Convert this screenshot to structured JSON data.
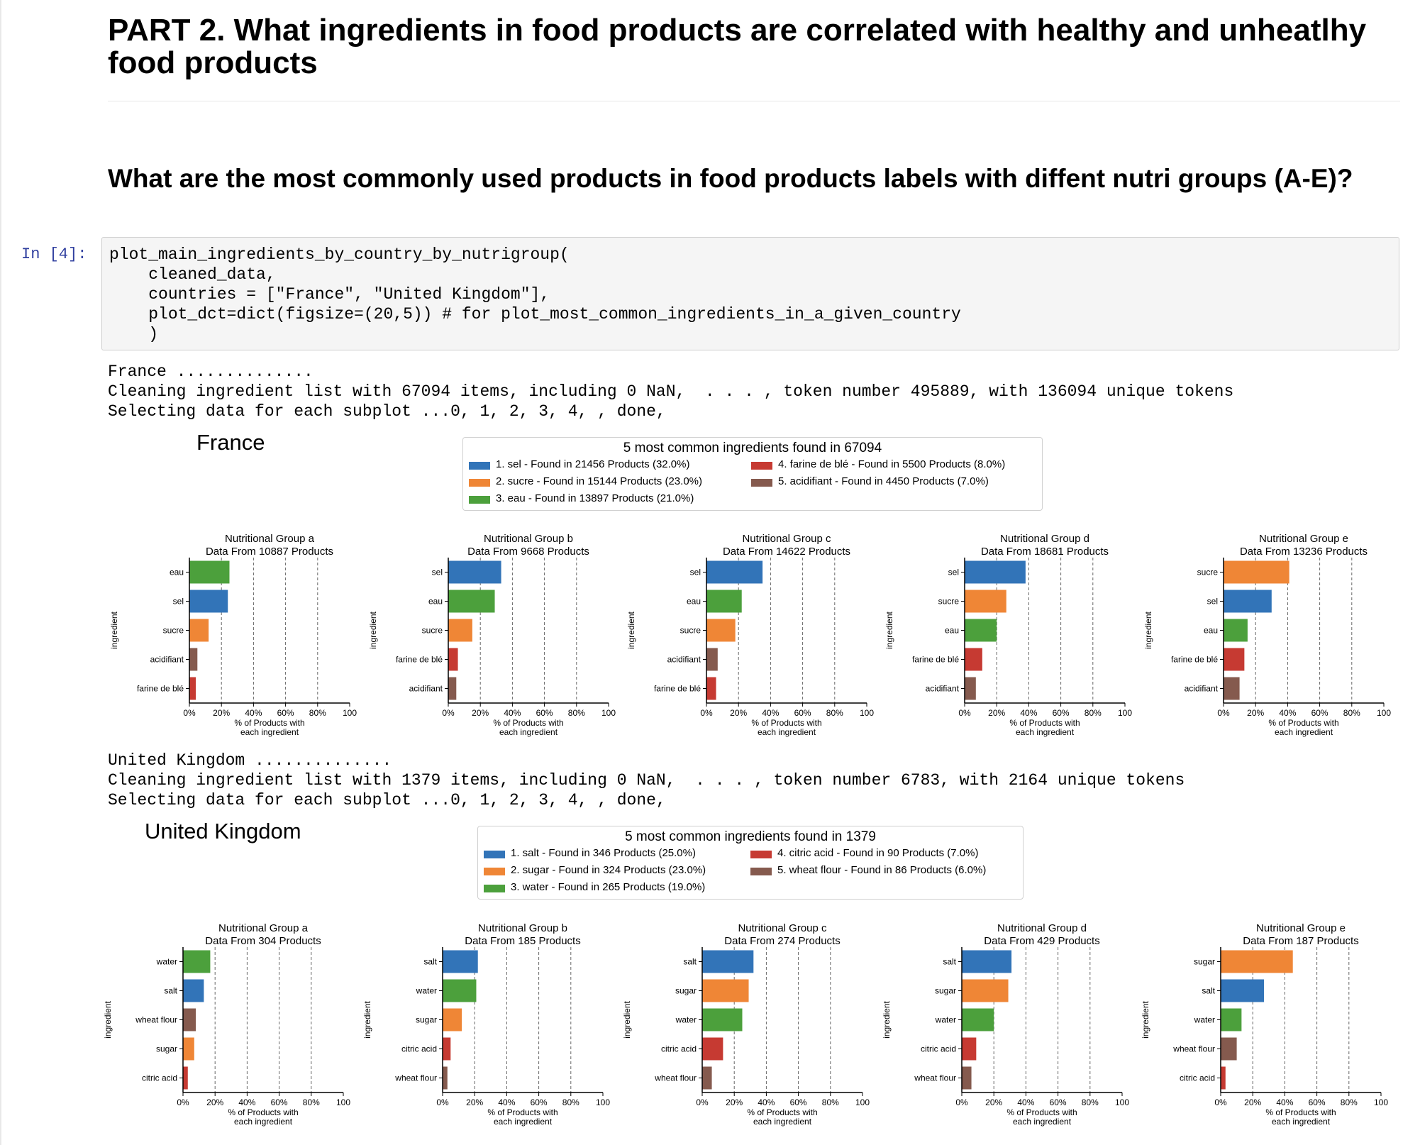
{
  "heading1": "PART 2. What ingredients in food products are correlated with healthy and unheatlhy food products",
  "heading2": "What are the most commonly used products in food products labels with diffent nutri groups (A-E)?",
  "prompt": "In [4]:",
  "code_lines": [
    "plot_main_ingredients_by_country_by_nutrigroup(",
    "    cleaned_data,",
    "    countries = [\"France\", \"United Kingdom\"],",
    "    plot_dct=dict(figsize=(20,5)) # for plot_most_common_ingredients_in_a_given_country",
    "    )"
  ],
  "colors": {
    "salt": "#3274b8",
    "sugar": "#ef8636",
    "water": "#4ca03c",
    "acid": "#c63a32",
    "flour": "#855a4e"
  },
  "outputs": [
    {
      "country_line": "France ..............",
      "cleaning_line": "Cleaning ingredient list with 67094 items, including 0 NaN,  . . . , token number 495889, with 136094 unique tokens",
      "selecting_line": "Selecting data for each subplot ...0, 1, 2, 3, 4, , done,",
      "title": "France",
      "legend_title": "5 most common ingredients found in 67094",
      "legend_items": [
        {
          "label": "1. sel - Found in 21456 Products (32.0%)",
          "color": "#3274b8"
        },
        {
          "label": "2. sucre - Found in 15144 Products (23.0%)",
          "color": "#ef8636"
        },
        {
          "label": "3. eau - Found in 13897 Products (21.0%)",
          "color": "#4ca03c"
        },
        {
          "label": "4. farine de blé - Found in 5500 Products (8.0%)",
          "color": "#c63a32"
        },
        {
          "label": "5. acidifiant - Found in 4450 Products (7.0%)",
          "color": "#855a4e"
        }
      ]
    },
    {
      "country_line": "United Kingdom ..............",
      "cleaning_line": "Cleaning ingredient list with 1379 items, including 0 NaN,  . . . , token number 6783, with 2164 unique tokens",
      "selecting_line": "Selecting data for each subplot ...0, 1, 2, 3, 4, , done,",
      "title": "United Kingdom",
      "legend_title": "5 most common ingredients found in 1379",
      "legend_items": [
        {
          "label": "1. salt - Found in 346 Products (25.0%)",
          "color": "#3274b8"
        },
        {
          "label": "2. sugar - Found in 324 Products (23.0%)",
          "color": "#ef8636"
        },
        {
          "label": "3. water - Found in 265 Products (19.0%)",
          "color": "#4ca03c"
        },
        {
          "label": "4. citric acid - Found in 90 Products (7.0%)",
          "color": "#c63a32"
        },
        {
          "label": "5. wheat flour - Found in 86 Products (6.0%)",
          "color": "#855a4e"
        }
      ]
    }
  ],
  "chart_data": [
    {
      "type": "bar",
      "orientation": "horizontal",
      "title": "Nutritional Group a",
      "subtitle": "Data From 10887 Products",
      "xlabel": "% of Products with each ingredient",
      "ylabel": "ingredient",
      "xlim": [
        0,
        100
      ],
      "xticks": [
        "0%",
        "20%",
        "40%",
        "60%",
        "80%",
        "100"
      ],
      "grid": "vertical dashed at 20,40,60,80",
      "bars": [
        {
          "label": "eau",
          "value": 25,
          "color": "#4ca03c"
        },
        {
          "label": "sel",
          "value": 24,
          "color": "#3274b8"
        },
        {
          "label": "sucre",
          "value": 12,
          "color": "#ef8636"
        },
        {
          "label": "acidifiant",
          "value": 5,
          "color": "#855a4e"
        },
        {
          "label": "farine de blé",
          "value": 4,
          "color": "#c63a32"
        }
      ]
    },
    {
      "type": "bar",
      "orientation": "horizontal",
      "title": "Nutritional Group b",
      "subtitle": "Data From 9668 Products",
      "xlabel": "% of Products with each ingredient",
      "ylabel": "ingredient",
      "xlim": [
        0,
        100
      ],
      "xticks": [
        "0%",
        "20%",
        "40%",
        "60%",
        "80%",
        "100"
      ],
      "grid": "vertical dashed at 20,40,60,80",
      "bars": [
        {
          "label": "sel",
          "value": 33,
          "color": "#3274b8"
        },
        {
          "label": "eau",
          "value": 29,
          "color": "#4ca03c"
        },
        {
          "label": "sucre",
          "value": 15,
          "color": "#ef8636"
        },
        {
          "label": "farine de blé",
          "value": 6,
          "color": "#c63a32"
        },
        {
          "label": "acidifiant",
          "value": 5,
          "color": "#855a4e"
        }
      ]
    },
    {
      "type": "bar",
      "orientation": "horizontal",
      "title": "Nutritional Group c",
      "subtitle": "Data From 14622 Products",
      "xlabel": "% of Products with each ingredient",
      "ylabel": "ingredient",
      "xlim": [
        0,
        100
      ],
      "xticks": [
        "0%",
        "20%",
        "40%",
        "60%",
        "80%",
        "100"
      ],
      "grid": "vertical dashed at 20,40,60,80",
      "bars": [
        {
          "label": "sel",
          "value": 35,
          "color": "#3274b8"
        },
        {
          "label": "eau",
          "value": 22,
          "color": "#4ca03c"
        },
        {
          "label": "sucre",
          "value": 18,
          "color": "#ef8636"
        },
        {
          "label": "acidifiant",
          "value": 7,
          "color": "#855a4e"
        },
        {
          "label": "farine de blé",
          "value": 6,
          "color": "#c63a32"
        }
      ]
    },
    {
      "type": "bar",
      "orientation": "horizontal",
      "title": "Nutritional Group d",
      "subtitle": "Data From 18681 Products",
      "xlabel": "% of Products with each ingredient",
      "ylabel": "ingredient",
      "xlim": [
        0,
        100
      ],
      "xticks": [
        "0%",
        "20%",
        "40%",
        "60%",
        "80%",
        "100"
      ],
      "grid": "vertical dashed at 20,40,60,80",
      "bars": [
        {
          "label": "sel",
          "value": 38,
          "color": "#3274b8"
        },
        {
          "label": "sucre",
          "value": 26,
          "color": "#ef8636"
        },
        {
          "label": "eau",
          "value": 20,
          "color": "#4ca03c"
        },
        {
          "label": "farine de blé",
          "value": 11,
          "color": "#c63a32"
        },
        {
          "label": "acidifiant",
          "value": 7,
          "color": "#855a4e"
        }
      ]
    },
    {
      "type": "bar",
      "orientation": "horizontal",
      "title": "Nutritional Group e",
      "subtitle": "Data From 13236 Products",
      "xlabel": "% of Products with each ingredient",
      "ylabel": "ingredient",
      "xlim": [
        0,
        100
      ],
      "xticks": [
        "0%",
        "20%",
        "40%",
        "60%",
        "80%",
        "100"
      ],
      "grid": "vertical dashed at 20,40,60,80",
      "bars": [
        {
          "label": "sucre",
          "value": 41,
          "color": "#ef8636"
        },
        {
          "label": "sel",
          "value": 30,
          "color": "#3274b8"
        },
        {
          "label": "eau",
          "value": 15,
          "color": "#4ca03c"
        },
        {
          "label": "farine de blé",
          "value": 13,
          "color": "#c63a32"
        },
        {
          "label": "acidifiant",
          "value": 10,
          "color": "#855a4e"
        }
      ]
    },
    {
      "type": "bar",
      "orientation": "horizontal",
      "title": "Nutritional Group a",
      "subtitle": "Data From 304 Products",
      "xlabel": "% of Products with each ingredient",
      "ylabel": "ingredient",
      "xlim": [
        0,
        100
      ],
      "xticks": [
        "0%",
        "20%",
        "40%",
        "60%",
        "80%",
        "100"
      ],
      "grid": "vertical dashed at 20,40,60,80",
      "bars": [
        {
          "label": "water",
          "value": 17,
          "color": "#4ca03c"
        },
        {
          "label": "salt",
          "value": 13,
          "color": "#3274b8"
        },
        {
          "label": "wheat flour",
          "value": 8,
          "color": "#855a4e"
        },
        {
          "label": "sugar",
          "value": 7,
          "color": "#ef8636"
        },
        {
          "label": "citric acid",
          "value": 3,
          "color": "#c63a32"
        }
      ]
    },
    {
      "type": "bar",
      "orientation": "horizontal",
      "title": "Nutritional Group b",
      "subtitle": "Data From 185 Products",
      "xlabel": "% of Products with each ingredient",
      "ylabel": "ingredient",
      "xlim": [
        0,
        100
      ],
      "xticks": [
        "0%",
        "20%",
        "40%",
        "60%",
        "80%",
        "100"
      ],
      "grid": "vertical dashed at 20,40,60,80",
      "bars": [
        {
          "label": "salt",
          "value": 22,
          "color": "#3274b8"
        },
        {
          "label": "water",
          "value": 21,
          "color": "#4ca03c"
        },
        {
          "label": "sugar",
          "value": 12,
          "color": "#ef8636"
        },
        {
          "label": "citric acid",
          "value": 5,
          "color": "#c63a32"
        },
        {
          "label": "wheat flour",
          "value": 3,
          "color": "#855a4e"
        }
      ]
    },
    {
      "type": "bar",
      "orientation": "horizontal",
      "title": "Nutritional Group c",
      "subtitle": "Data From 274 Products",
      "xlabel": "% of Products with each ingredient",
      "ylabel": "ingredient",
      "xlim": [
        0,
        100
      ],
      "xticks": [
        "0%",
        "20%",
        "40%",
        "60%",
        "80%",
        "100"
      ],
      "grid": "vertical dashed at 20,40,60,80",
      "bars": [
        {
          "label": "salt",
          "value": 32,
          "color": "#3274b8"
        },
        {
          "label": "sugar",
          "value": 29,
          "color": "#ef8636"
        },
        {
          "label": "water",
          "value": 25,
          "color": "#4ca03c"
        },
        {
          "label": "citric acid",
          "value": 13,
          "color": "#c63a32"
        },
        {
          "label": "wheat flour",
          "value": 6,
          "color": "#855a4e"
        }
      ]
    },
    {
      "type": "bar",
      "orientation": "horizontal",
      "title": "Nutritional Group d",
      "subtitle": "Data From 429 Products",
      "xlabel": "% of Products with each ingredient",
      "ylabel": "ingredient",
      "xlim": [
        0,
        100
      ],
      "xticks": [
        "0%",
        "20%",
        "40%",
        "60%",
        "80%",
        "100"
      ],
      "grid": "vertical dashed at 20,40,60,80",
      "bars": [
        {
          "label": "salt",
          "value": 31,
          "color": "#3274b8"
        },
        {
          "label": "sugar",
          "value": 29,
          "color": "#ef8636"
        },
        {
          "label": "water",
          "value": 20,
          "color": "#4ca03c"
        },
        {
          "label": "citric acid",
          "value": 9,
          "color": "#c63a32"
        },
        {
          "label": "wheat flour",
          "value": 6,
          "color": "#855a4e"
        }
      ]
    },
    {
      "type": "bar",
      "orientation": "horizontal",
      "title": "Nutritional Group e",
      "subtitle": "Data From 187 Products",
      "xlabel": "% of Products with each ingredient",
      "ylabel": "ingredient",
      "xlim": [
        0,
        100
      ],
      "xticks": [
        "0%",
        "20%",
        "40%",
        "60%",
        "80%",
        "100"
      ],
      "grid": "vertical dashed at 20,40,60,80",
      "bars": [
        {
          "label": "sugar",
          "value": 45,
          "color": "#ef8636"
        },
        {
          "label": "salt",
          "value": 27,
          "color": "#3274b8"
        },
        {
          "label": "water",
          "value": 13,
          "color": "#4ca03c"
        },
        {
          "label": "wheat flour",
          "value": 10,
          "color": "#855a4e"
        },
        {
          "label": "citric acid",
          "value": 3,
          "color": "#c63a32"
        }
      ]
    }
  ]
}
